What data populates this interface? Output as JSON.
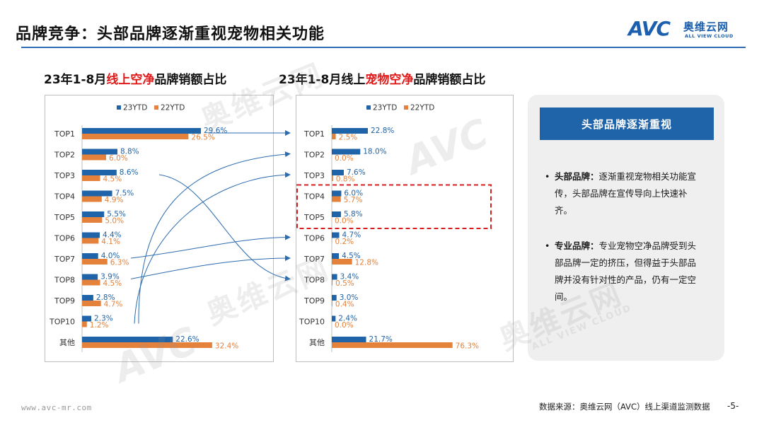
{
  "header": {
    "title": "品牌竞争：头部品牌逐渐重视宠物相关功能",
    "logo_avc": "AVC",
    "logo_cn": "奥维云网",
    "logo_en": "ALL VIEW CLOUD"
  },
  "colors": {
    "series_23": "#1f63a8",
    "series_22": "#e4813a",
    "accent_blue": "#1f63a8",
    "highlight_red": "#d21f1f",
    "subtitle_red": "#e01919"
  },
  "left_chart_title": {
    "prefix": "23年1-8月",
    "highlight": "线上空净",
    "suffix": "品牌销额占比"
  },
  "right_chart_title": {
    "prefix": "23年1-8月线上",
    "highlight": "宠物空净",
    "suffix": "品牌销额占比"
  },
  "chart_data": [
    {
      "type": "bar",
      "orientation": "horizontal",
      "title": "23年1-8月线上空净品牌销额占比",
      "categories": [
        "TOP1",
        "TOP2",
        "TOP3",
        "TOP4",
        "TOP5",
        "TOP6",
        "TOP7",
        "TOP8",
        "TOP9",
        "TOP10",
        "其他"
      ],
      "series": [
        {
          "name": "23YTD",
          "values": [
            29.6,
            8.8,
            8.6,
            7.5,
            5.5,
            4.4,
            4.0,
            3.9,
            2.8,
            2.3,
            22.6
          ],
          "labels": [
            "29.6%",
            "8.8%",
            "8.6%",
            "7.5%",
            "5.5%",
            "4.4%",
            "4.0%",
            "3.9%",
            "2.8%",
            "2.3%",
            "22.6%"
          ]
        },
        {
          "name": "22YTD",
          "values": [
            26.5,
            6.0,
            4.5,
            4.9,
            5.0,
            4.1,
            6.3,
            4.5,
            4.7,
            1.2,
            32.4
          ],
          "labels": [
            "26.5%",
            "6.0%",
            "4.5%",
            "4.9%",
            "5.0%",
            "4.1%",
            "6.3%",
            "4.5%",
            "4.7%",
            "1.2%",
            "32.4%"
          ]
        }
      ],
      "legend": "top",
      "grid": false
    },
    {
      "type": "bar",
      "orientation": "horizontal",
      "title": "23年1-8月线上宠物空净品牌销额占比",
      "categories": [
        "TOP1",
        "TOP2",
        "TOP3",
        "TOP4",
        "TOP5",
        "TOP6",
        "TOP7",
        "TOP8",
        "TOP9",
        "TOP10",
        "其他"
      ],
      "series": [
        {
          "name": "23YTD",
          "values": [
            22.8,
            18.0,
            7.6,
            6.0,
            5.8,
            4.7,
            4.5,
            3.4,
            3.0,
            2.4,
            21.7
          ],
          "labels": [
            "22.8%",
            "18.0%",
            "7.6%",
            "6.0%",
            "5.8%",
            "4.7%",
            "4.5%",
            "3.4%",
            "3.0%",
            "2.4%",
            "21.7%"
          ]
        },
        {
          "name": "22YTD",
          "values": [
            2.5,
            0.0,
            0.8,
            5.7,
            0.0,
            0.2,
            12.8,
            0.5,
            0.4,
            0.0,
            76.3
          ],
          "labels": [
            "2.5%",
            "0.0%",
            "0.8%",
            "5.7%",
            "0.0%",
            "0.2%",
            "12.8%",
            "0.5%",
            "0.4%",
            "0.0%",
            "76.3%"
          ]
        }
      ],
      "legend": "top",
      "grid": false
    }
  ],
  "panel": {
    "header": "头部品牌逐渐重视",
    "bullet_symbol": "•",
    "bullets": [
      {
        "head": "头部品牌：",
        "text": "逐渐重视宠物相关功能宣传，头部品牌在宣传导向上快速补齐。"
      },
      {
        "head": "专业品牌：",
        "text": "专业宠物空净品牌受到头部品牌一定的挤压，但得益于头部品牌并没有针对性的产品，仍有一定空间。"
      }
    ]
  },
  "footer": {
    "url": "www.avc-mr.com",
    "source": "数据来源：奥维云网（AVC）线上渠道监测数据",
    "page": "-5-"
  }
}
